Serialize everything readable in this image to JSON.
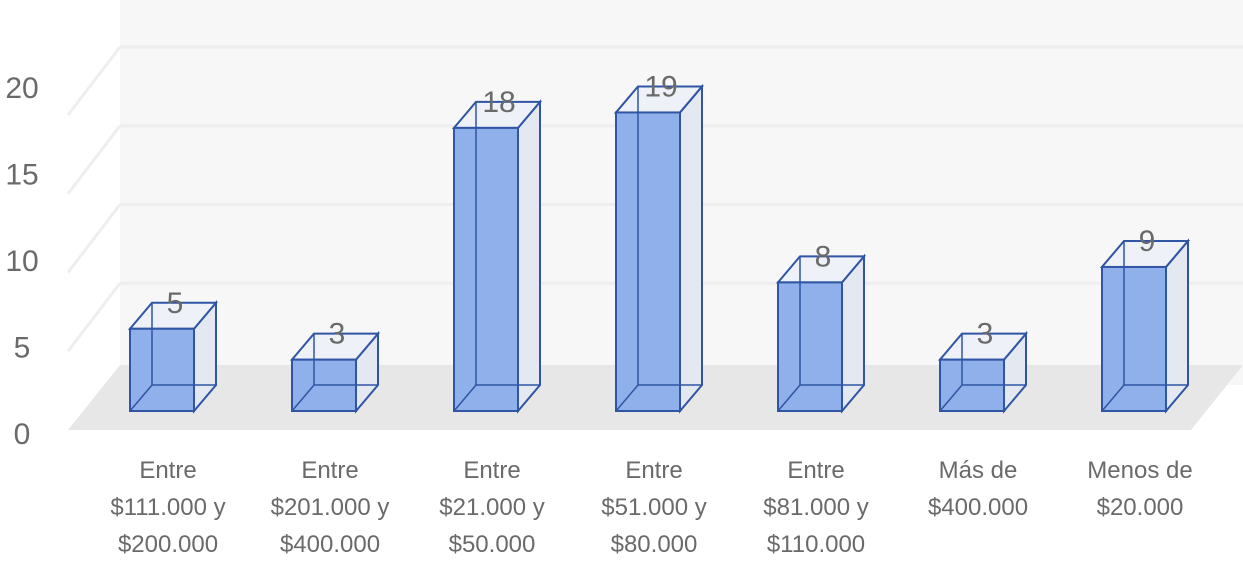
{
  "chart_data": {
    "type": "bar",
    "style": "3d-column",
    "categories": [
      [
        "Entre",
        "$111.000 y",
        "$200.000"
      ],
      [
        "Entre",
        "$201.000 y",
        "$400.000"
      ],
      [
        "Entre",
        "$21.000 y",
        "$50.000"
      ],
      [
        "Entre",
        "$51.000 y",
        "$80.000"
      ],
      [
        "Entre",
        "$81.000 y",
        "$110.000"
      ],
      [
        "Más de",
        "$400.000"
      ],
      [
        "Menos de",
        "$20.000"
      ]
    ],
    "values": [
      5,
      3,
      18,
      19,
      8,
      3,
      9
    ],
    "data_labels": [
      "5",
      "3",
      "18",
      "19",
      "8",
      "3",
      "9"
    ],
    "y_ticks": [
      "0",
      "5",
      "10",
      "15",
      "20"
    ],
    "ylim": [
      0,
      20
    ],
    "grid": true,
    "title": "",
    "xlabel": "",
    "ylabel": "",
    "colors": {
      "bar_front": "#8fb0ea",
      "bar_edge": "#2f55a4",
      "bar_top": "#eef1f8",
      "bar_side": "#e4e8f1",
      "floor": "#e7e7e7",
      "wall": "#f7f7f7",
      "grid": "#eeeeee",
      "text": "#6a6a6a"
    }
  }
}
